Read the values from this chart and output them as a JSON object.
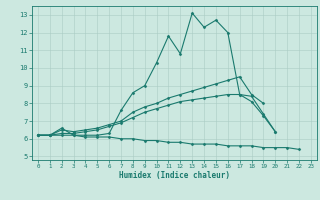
{
  "xlabel": "Humidex (Indice chaleur)",
  "bg_color": "#cce8e0",
  "line_color": "#1a7a6e",
  "grid_color": "#aaccc4",
  "xlim": [
    -0.5,
    23.5
  ],
  "ylim": [
    4.8,
    13.5
  ],
  "yticks": [
    5,
    6,
    7,
    8,
    9,
    10,
    11,
    12,
    13
  ],
  "xticks": [
    0,
    1,
    2,
    3,
    4,
    5,
    6,
    7,
    8,
    9,
    10,
    11,
    12,
    13,
    14,
    15,
    16,
    17,
    18,
    19,
    20,
    21,
    22,
    23
  ],
  "line_max": [
    6.2,
    6.2,
    6.6,
    6.2,
    6.2,
    6.2,
    6.3,
    7.6,
    8.6,
    9.0,
    10.3,
    11.8,
    10.8,
    13.1,
    12.3,
    12.7,
    12.0,
    8.5,
    8.1,
    7.3,
    6.4,
    null,
    null,
    null
  ],
  "line_upper": [
    6.2,
    6.2,
    6.5,
    6.4,
    6.5,
    6.6,
    6.8,
    7.0,
    7.5,
    7.8,
    8.0,
    8.3,
    8.5,
    8.7,
    8.9,
    9.1,
    9.3,
    9.5,
    8.5,
    8.0,
    null,
    null,
    null,
    null
  ],
  "line_lower": [
    6.2,
    6.2,
    6.3,
    6.3,
    6.4,
    6.5,
    6.7,
    6.9,
    7.2,
    7.5,
    7.7,
    7.9,
    8.1,
    8.2,
    8.3,
    8.4,
    8.5,
    8.5,
    8.4,
    7.4,
    6.4,
    null,
    null,
    null
  ],
  "line_min": [
    6.2,
    6.2,
    6.2,
    6.2,
    6.1,
    6.1,
    6.1,
    6.0,
    6.0,
    5.9,
    5.9,
    5.8,
    5.8,
    5.7,
    5.7,
    5.7,
    5.6,
    5.6,
    5.6,
    5.5,
    5.5,
    5.5,
    5.4,
    null
  ]
}
